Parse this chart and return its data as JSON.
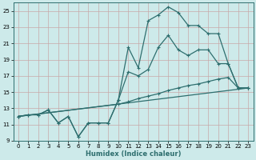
{
  "xlabel": "Humidex (Indice chaleur)",
  "bg_color": "#cdeaea",
  "grid_color": "#c8a8a8",
  "line_color": "#2e6e6e",
  "xlim": [
    -0.5,
    23.5
  ],
  "ylim": [
    9,
    26
  ],
  "yticks": [
    9,
    11,
    13,
    15,
    17,
    19,
    21,
    23,
    25
  ],
  "xticks": [
    0,
    1,
    2,
    3,
    4,
    5,
    6,
    7,
    8,
    9,
    10,
    11,
    12,
    13,
    14,
    15,
    16,
    17,
    18,
    19,
    20,
    21,
    22,
    23
  ],
  "line1_x": [
    0,
    1,
    2,
    3,
    4,
    5,
    6,
    7,
    8,
    9,
    10,
    11,
    12,
    13,
    14,
    15,
    16,
    17,
    18,
    19,
    20,
    21,
    22,
    23
  ],
  "line1_y": [
    12.0,
    12.2,
    12.2,
    12.8,
    11.2,
    12.0,
    9.5,
    11.2,
    11.2,
    11.2,
    14.0,
    20.5,
    18.0,
    23.8,
    24.5,
    25.5,
    24.8,
    23.2,
    23.2,
    22.2,
    22.2,
    18.5,
    15.5,
    15.5
  ],
  "line2_x": [
    0,
    1,
    2,
    3,
    4,
    5,
    6,
    7,
    8,
    9,
    10,
    11,
    12,
    13,
    14,
    15,
    16,
    17,
    18,
    19,
    20,
    21,
    22,
    23
  ],
  "line2_y": [
    12.0,
    12.2,
    12.2,
    12.8,
    11.2,
    12.0,
    9.5,
    11.2,
    11.2,
    11.2,
    14.0,
    17.5,
    17.0,
    17.8,
    20.5,
    22.0,
    20.2,
    19.5,
    20.2,
    20.2,
    18.5,
    18.5,
    15.5,
    15.5
  ],
  "line3_x": [
    0,
    10,
    11,
    12,
    13,
    14,
    15,
    16,
    17,
    18,
    19,
    20,
    21,
    22,
    23
  ],
  "line3_y": [
    12.0,
    13.5,
    13.8,
    14.2,
    14.5,
    14.8,
    15.2,
    15.5,
    15.8,
    16.0,
    16.3,
    16.6,
    16.8,
    15.5,
    15.5
  ],
  "line4_x": [
    0,
    23
  ],
  "line4_y": [
    12.0,
    15.5
  ]
}
